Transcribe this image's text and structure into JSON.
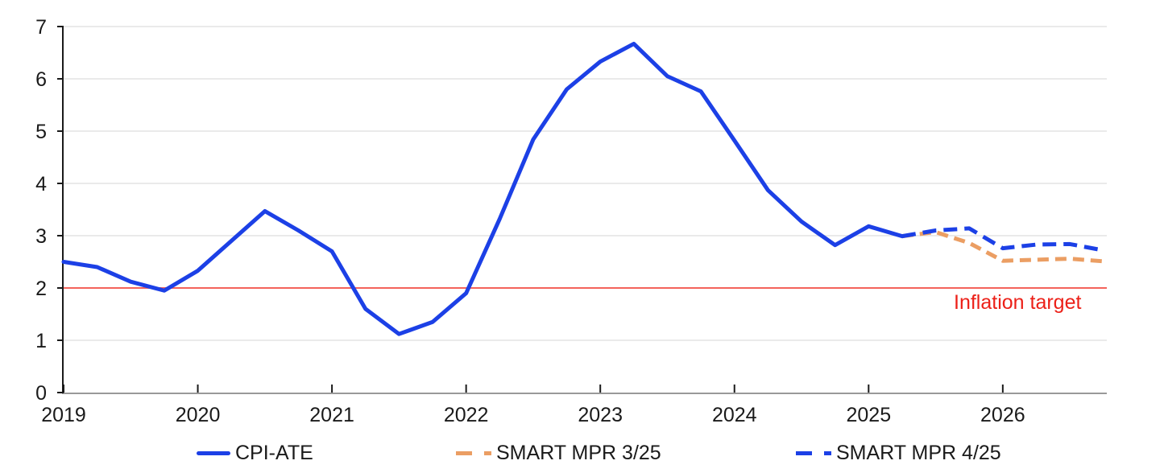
{
  "chart_data": {
    "type": "line",
    "title": "",
    "x_ticks": [
      2019,
      2020,
      2021,
      2022,
      2023,
      2024,
      2025,
      2026
    ],
    "y_ticks": [
      0,
      1,
      2,
      3,
      4,
      5,
      6,
      7
    ],
    "xlim": [
      2019,
      2026.79
    ],
    "ylim": [
      0,
      7
    ],
    "grid": "horizontal",
    "legend_position": "bottom",
    "colors": {
      "axis": "#1a1a1a",
      "x_axis_line": "#999999",
      "grid": "#e3e3e3",
      "text": "#1a1a1a"
    },
    "reference_line": {
      "value": 2,
      "label": "Inflation target",
      "line_color": "#f4635b",
      "label_color": "#ec2018"
    },
    "series": [
      {
        "name": "CPI-ATE",
        "color": "#1c40e6",
        "style": "solid",
        "x": [
          2019.0,
          2019.25,
          2019.5,
          2019.75,
          2020.0,
          2020.25,
          2020.5,
          2020.75,
          2021.0,
          2021.25,
          2021.5,
          2021.75,
          2022.0,
          2022.25,
          2022.5,
          2022.75,
          2023.0,
          2023.25,
          2023.5,
          2023.75,
          2024.0,
          2024.25,
          2024.5,
          2024.75,
          2025.0,
          2025.25
        ],
        "values": [
          2.5,
          2.4,
          2.12,
          1.95,
          2.33,
          2.9,
          3.47,
          3.1,
          2.7,
          1.6,
          1.12,
          1.35,
          1.9,
          3.32,
          4.84,
          5.8,
          6.33,
          6.67,
          6.05,
          5.76,
          4.82,
          3.87,
          3.27,
          2.82,
          3.18,
          2.99
        ]
      },
      {
        "name": "SMART MPR 3/25",
        "color": "#eb9e63",
        "style": "dashed",
        "dash": "14 8",
        "x": [
          2025.25,
          2025.5,
          2025.75,
          2026.0,
          2026.25,
          2026.5,
          2026.75
        ],
        "values": [
          2.99,
          3.07,
          2.86,
          2.52,
          2.54,
          2.56,
          2.51
        ]
      },
      {
        "name": "SMART MPR 4/25",
        "color": "#1c40e6",
        "style": "dashed",
        "dash": "17 9",
        "x": [
          2025.25,
          2025.5,
          2025.75,
          2026.0,
          2026.25,
          2026.5,
          2026.75
        ],
        "values": [
          2.99,
          3.1,
          3.14,
          2.76,
          2.83,
          2.84,
          2.72
        ]
      }
    ]
  }
}
